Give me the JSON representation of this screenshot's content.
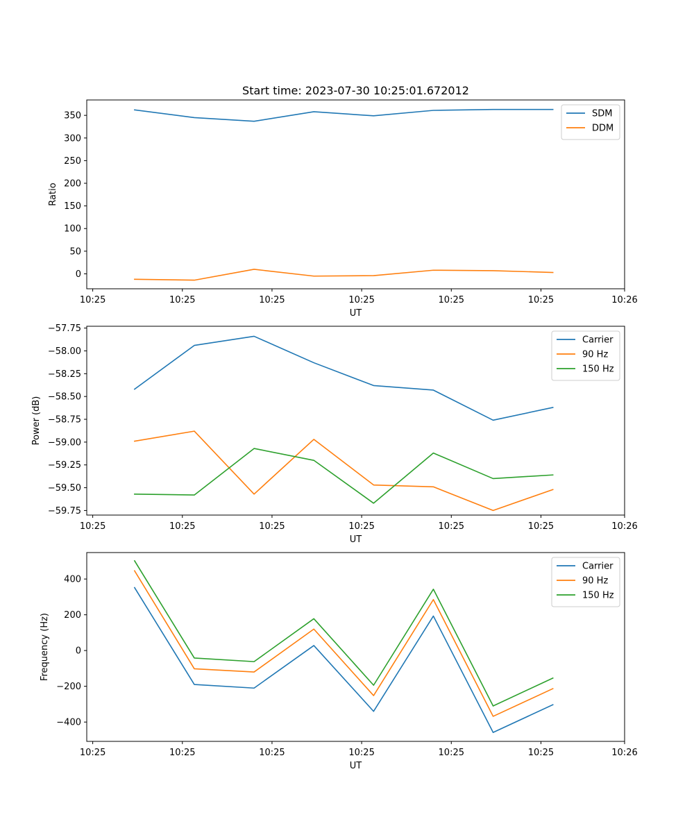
{
  "chart_data": [
    {
      "type": "line",
      "title": "Start time: 2023-07-30 10:25:01.672012",
      "xlabel": "UT",
      "ylabel": "Ratio",
      "x": [
        1,
        2,
        3,
        4,
        5,
        6,
        7,
        8
      ],
      "xlim": [
        0.2,
        9.2
      ],
      "xticks": [
        0.3,
        1.8,
        3.3,
        4.8,
        6.3,
        7.8,
        9.2
      ],
      "xtick_labels": [
        "10:25",
        "10:25",
        "10:25",
        "10:25",
        "10:25",
        "10:25",
        "10:26"
      ],
      "ylim": [
        -33,
        384
      ],
      "yticks": [
        0,
        50,
        100,
        150,
        200,
        250,
        300,
        350
      ],
      "ytick_labels": [
        "0",
        "50",
        "100",
        "150",
        "200",
        "250",
        "300",
        "350"
      ],
      "legend_position": "top-right",
      "series": [
        {
          "name": "SDM",
          "color": "#1f77b4",
          "values": [
            362,
            345,
            337,
            358,
            349,
            361,
            363,
            363
          ]
        },
        {
          "name": "DDM",
          "color": "#ff7f0e",
          "values": [
            -12,
            -14,
            10,
            -5,
            -4,
            8,
            7,
            3
          ]
        }
      ]
    },
    {
      "type": "line",
      "title": "",
      "xlabel": "UT",
      "ylabel": "Power (dB)",
      "x": [
        1,
        2,
        3,
        4,
        5,
        6,
        7,
        8
      ],
      "xlim": [
        0.2,
        9.2
      ],
      "xticks": [
        0.3,
        1.8,
        3.3,
        4.8,
        6.3,
        7.8,
        9.2
      ],
      "xtick_labels": [
        "10:25",
        "10:25",
        "10:25",
        "10:25",
        "10:25",
        "10:25",
        "10:26"
      ],
      "ylim": [
        -59.8,
        -57.73
      ],
      "yticks": [
        -57.75,
        -58.0,
        -58.25,
        -58.5,
        -58.75,
        -59.0,
        -59.25,
        -59.5,
        -59.75
      ],
      "ytick_labels": [
        "−57.75",
        "−58.00",
        "−58.25",
        "−58.50",
        "−58.75",
        "−59.00",
        "−59.25",
        "−59.50",
        "−59.75"
      ],
      "legend_position": "top-right",
      "series": [
        {
          "name": "Carrier",
          "color": "#1f77b4",
          "values": [
            -58.42,
            -57.94,
            -57.84,
            -58.13,
            -58.38,
            -58.43,
            -58.76,
            -58.62
          ]
        },
        {
          "name": "90 Hz",
          "color": "#ff7f0e",
          "values": [
            -58.99,
            -58.88,
            -59.57,
            -58.97,
            -59.47,
            -59.49,
            -59.75,
            -59.52
          ]
        },
        {
          "name": "150 Hz",
          "color": "#2ca02c",
          "values": [
            -59.57,
            -59.58,
            -59.07,
            -59.2,
            -59.67,
            -59.12,
            -59.4,
            -59.36
          ]
        }
      ]
    },
    {
      "type": "line",
      "title": "",
      "xlabel": "UT",
      "ylabel": "Frequency (Hz)",
      "x": [
        1,
        2,
        3,
        4,
        5,
        6,
        7,
        8
      ],
      "xlim": [
        0.2,
        9.2
      ],
      "xticks": [
        0.3,
        1.8,
        3.3,
        4.8,
        6.3,
        7.8,
        9.2
      ],
      "xtick_labels": [
        "10:25",
        "10:25",
        "10:25",
        "10:25",
        "10:25",
        "10:25",
        "10:26"
      ],
      "ylim": [
        -508,
        548
      ],
      "yticks": [
        -400,
        -200,
        0,
        200,
        400
      ],
      "ytick_labels": [
        "−400",
        "−200",
        "0",
        "200",
        "400"
      ],
      "legend_position": "top-right",
      "series": [
        {
          "name": "Carrier",
          "color": "#1f77b4",
          "values": [
            352,
            -190,
            -210,
            28,
            -340,
            193,
            -458,
            -303
          ]
        },
        {
          "name": "90 Hz",
          "color": "#ff7f0e",
          "values": [
            446,
            -102,
            -120,
            120,
            -252,
            285,
            -368,
            -213
          ]
        },
        {
          "name": "150 Hz",
          "color": "#2ca02c",
          "values": [
            502,
            -42,
            -62,
            178,
            -194,
            343,
            -310,
            -154
          ]
        }
      ]
    }
  ]
}
